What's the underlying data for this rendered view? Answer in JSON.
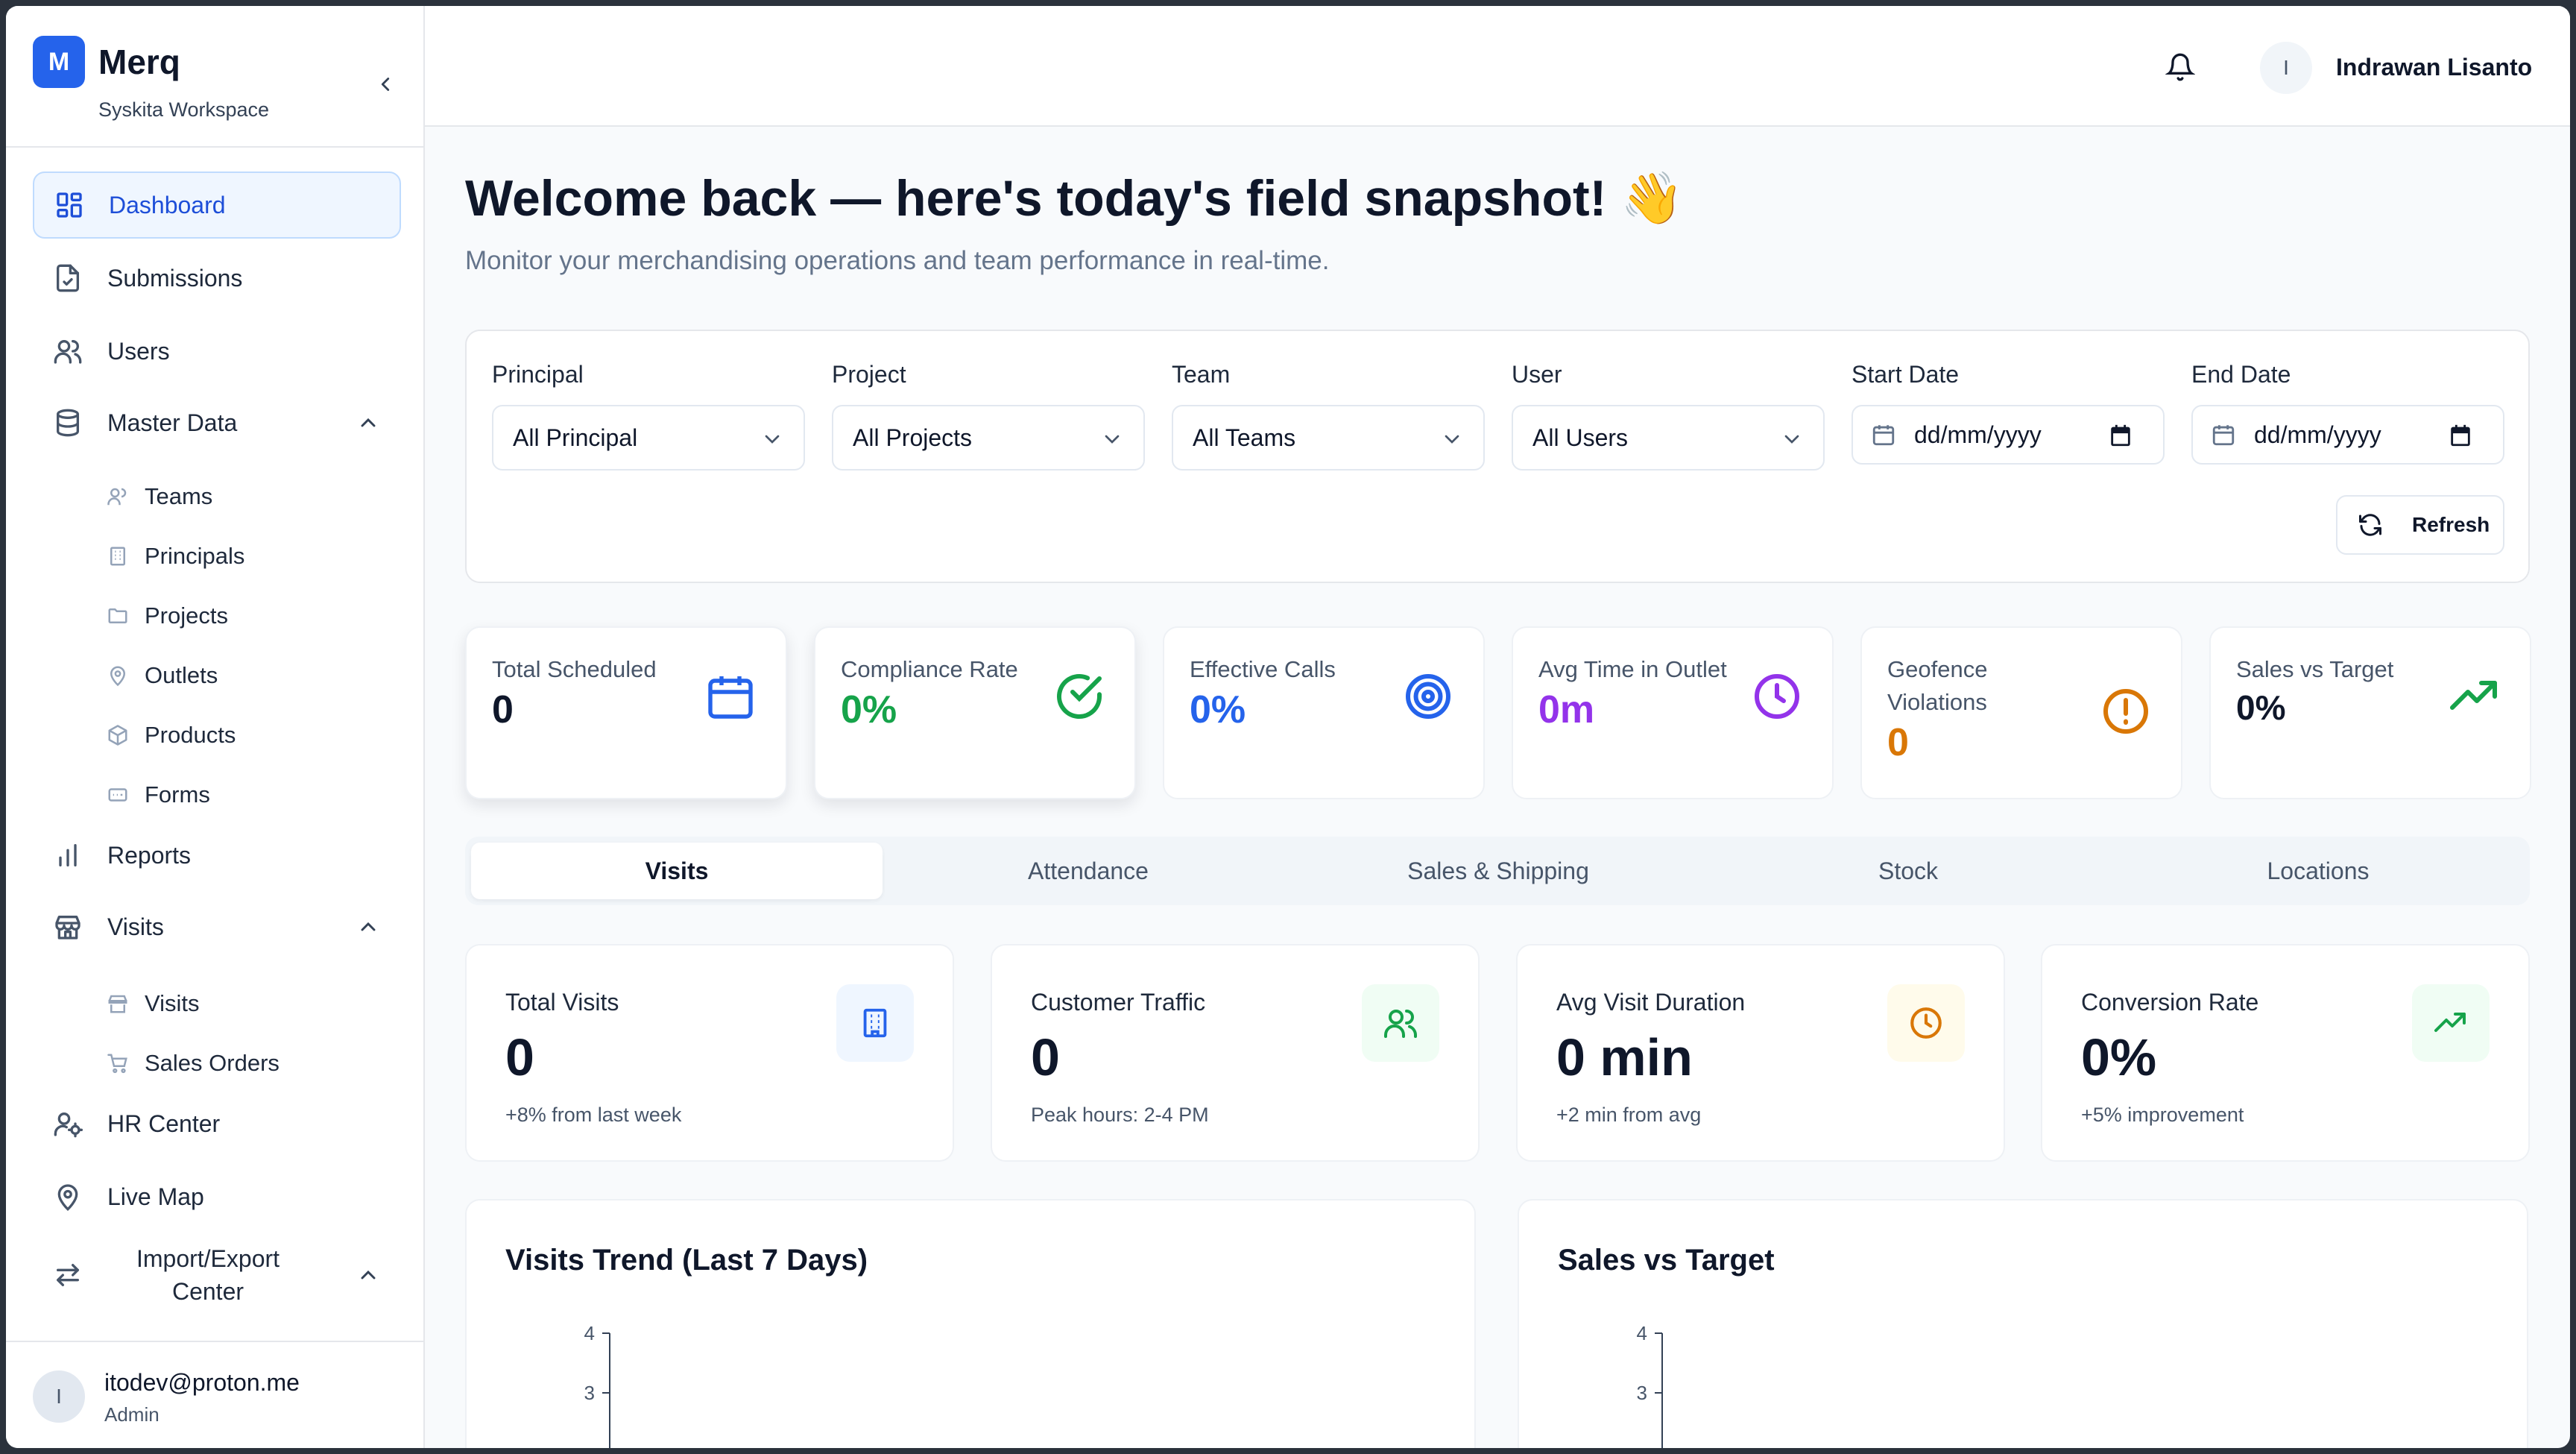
{
  "brand": {
    "logo_letter": "M",
    "name": "Merq",
    "workspace": "Syskita Workspace"
  },
  "sidebar": {
    "items": [
      {
        "label": "Dashboard",
        "icon": "dashboard-grid-icon",
        "active": true
      },
      {
        "label": "Submissions",
        "icon": "file-check-icon"
      },
      {
        "label": "Users",
        "icon": "users-icon"
      },
      {
        "label": "Master Data",
        "icon": "database-icon",
        "expanded": true,
        "children": [
          {
            "label": "Teams",
            "icon": "users-icon"
          },
          {
            "label": "Principals",
            "icon": "building-icon"
          },
          {
            "label": "Projects",
            "icon": "folder-icon"
          },
          {
            "label": "Outlets",
            "icon": "map-pin-icon"
          },
          {
            "label": "Products",
            "icon": "box-icon"
          },
          {
            "label": "Forms",
            "icon": "form-icon"
          }
        ]
      },
      {
        "label": "Reports",
        "icon": "bar-chart-icon"
      },
      {
        "label": "Visits",
        "icon": "store-icon",
        "expanded": true,
        "children": [
          {
            "label": "Visits",
            "icon": "store-icon"
          },
          {
            "label": "Sales Orders",
            "icon": "cart-icon"
          }
        ]
      },
      {
        "label": "HR Center",
        "icon": "user-cog-icon"
      },
      {
        "label": "Live Map",
        "icon": "map-pin-icon"
      },
      {
        "label": "Import/Export Center",
        "icon": "arrows-swap-icon",
        "expanded": true
      }
    ],
    "footer": {
      "avatar_letter": "I",
      "email": "itodev@proton.me",
      "role": "Admin"
    }
  },
  "topbar": {
    "avatar_letter": "I",
    "user_name": "Indrawan Lisanto"
  },
  "page": {
    "title": "Welcome back — here's today's field snapshot! 👋",
    "subtitle": "Monitor your merchandising operations and team performance in real-time."
  },
  "filters": {
    "principal": {
      "label": "Principal",
      "value": "All Principal"
    },
    "project": {
      "label": "Project",
      "value": "All Projects"
    },
    "team": {
      "label": "Team",
      "value": "All Teams"
    },
    "user": {
      "label": "User",
      "value": "All Users"
    },
    "start_date": {
      "label": "Start Date",
      "placeholder": "dd/mm/yyyy"
    },
    "end_date": {
      "label": "End Date",
      "placeholder": "dd/mm/yyyy"
    },
    "refresh_label": "Refresh"
  },
  "kpis": [
    {
      "title": "Total Scheduled",
      "value": "0",
      "color": "#0f172a",
      "icon": "calendar-icon"
    },
    {
      "title": "Compliance Rate",
      "value": "0%",
      "color": "#16a34a",
      "icon": "check-circle-icon"
    },
    {
      "title": "Effective Calls",
      "value": "0%",
      "color": "#2563eb",
      "icon": "target-icon"
    },
    {
      "title": "Avg Time in Outlet",
      "value": "0m",
      "color": "#9333ea",
      "icon": "clock-icon"
    },
    {
      "title": "Geofence Violations",
      "value": "0",
      "color": "#d97706",
      "icon": "alert-circle-icon"
    },
    {
      "title": "Sales vs Target",
      "value": "0%",
      "color": "#0f172a",
      "icon": "trending-up-icon"
    }
  ],
  "tabs": [
    {
      "label": "Visits",
      "active": true
    },
    {
      "label": "Attendance"
    },
    {
      "label": "Sales & Shipping"
    },
    {
      "label": "Stock"
    },
    {
      "label": "Locations"
    }
  ],
  "stats": [
    {
      "title": "Total Visits",
      "value": "0",
      "sub": "+8% from last week",
      "icon": "building-icon",
      "accent": "#2563eb",
      "bg": "#eff6ff"
    },
    {
      "title": "Customer Traffic",
      "value": "0",
      "sub": "Peak hours: 2-4 PM",
      "icon": "users-icon",
      "accent": "#16a34a",
      "bg": "#f0fdf4"
    },
    {
      "title": "Avg Visit Duration",
      "value": "0 min",
      "sub": "+2 min from avg",
      "icon": "clock-icon",
      "accent": "#d97706",
      "bg": "#fffbeb"
    },
    {
      "title": "Conversion Rate",
      "value": "0%",
      "sub": "+5% improvement",
      "icon": "trending-up-icon",
      "accent": "#16a34a",
      "bg": "#f0fdf4"
    }
  ],
  "charts": [
    {
      "title": "Visits Trend (Last 7 Days)",
      "y_ticks": [
        "4",
        "3"
      ]
    },
    {
      "title": "Sales vs Target",
      "y_ticks": [
        "4",
        "3"
      ]
    }
  ]
}
